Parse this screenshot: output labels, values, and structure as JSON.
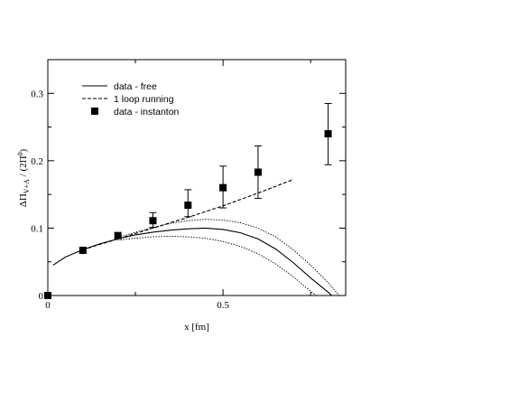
{
  "chart_data": {
    "type": "line",
    "xlabel": "x [fm]",
    "ylabel": {
      "main": "ΔΠ",
      "sub": "V+A",
      "tail": " / (2Π",
      "sup": "0",
      "end": ")"
    },
    "xlim": [
      0,
      0.85
    ],
    "ylim": [
      0,
      0.35
    ],
    "x_ticks": [
      {
        "value": 0,
        "label": "0"
      },
      {
        "value": 0.5,
        "label": "0.5"
      }
    ],
    "x_minor_ticks": [
      0.25,
      0.75
    ],
    "y_ticks": [
      {
        "value": 0,
        "label": "0"
      },
      {
        "value": 0.1,
        "label": "0.1"
      },
      {
        "value": 0.2,
        "label": "0.2"
      },
      {
        "value": 0.3,
        "label": "0.3"
      }
    ],
    "y_minor_ticks": [
      0.05,
      0.15,
      0.25
    ],
    "grid": false,
    "legend_position": "top-left",
    "legend": [
      {
        "label": "data - free",
        "style": "solid"
      },
      {
        "label": "1 loop running",
        "style": "dashed"
      },
      {
        "label": "data - instanton",
        "style": "marker"
      }
    ],
    "series": [
      {
        "name": "data - free",
        "style": "solid",
        "x": [
          0.015,
          0.05,
          0.1,
          0.15,
          0.2,
          0.25,
          0.3,
          0.35,
          0.4,
          0.45,
          0.5,
          0.55,
          0.6,
          0.65,
          0.7,
          0.75,
          0.8,
          0.82
        ],
        "y": [
          0.045,
          0.057,
          0.068,
          0.077,
          0.084,
          0.09,
          0.094,
          0.097,
          0.099,
          0.1,
          0.098,
          0.093,
          0.084,
          0.069,
          0.049,
          0.026,
          0.005,
          -0.005
        ]
      },
      {
        "name": "",
        "style": "dotted",
        "x": [
          0.2,
          0.25,
          0.3,
          0.35,
          0.4,
          0.45,
          0.5,
          0.55,
          0.6,
          0.65,
          0.7,
          0.75,
          0.8,
          0.84
        ],
        "y": [
          0.086,
          0.094,
          0.101,
          0.107,
          0.111,
          0.113,
          0.112,
          0.108,
          0.1,
          0.087,
          0.068,
          0.045,
          0.019,
          -0.005
        ]
      },
      {
        "name": "",
        "style": "dotted",
        "x": [
          0.2,
          0.25,
          0.3,
          0.35,
          0.4,
          0.45,
          0.5,
          0.55,
          0.6,
          0.65,
          0.7,
          0.75,
          0.78
        ],
        "y": [
          0.082,
          0.085,
          0.087,
          0.088,
          0.087,
          0.085,
          0.08,
          0.073,
          0.062,
          0.047,
          0.028,
          0.006,
          -0.005
        ]
      },
      {
        "name": "1 loop running",
        "style": "dashed",
        "x": [
          0.1,
          0.2,
          0.3,
          0.4,
          0.5,
          0.6,
          0.7
        ],
        "y": [
          0.068,
          0.084,
          0.1,
          0.116,
          0.133,
          0.152,
          0.172
        ]
      },
      {
        "name": "data - instanton",
        "style": "marker",
        "x": [
          0.0,
          0.1,
          0.2,
          0.3,
          0.4,
          0.5,
          0.6,
          0.8
        ],
        "y": [
          0.0,
          0.067,
          0.089,
          0.111,
          0.134,
          0.16,
          0.183,
          0.24
        ],
        "err_low": [
          0.0,
          0.0,
          0.0,
          0.01,
          0.017,
          0.03,
          0.039,
          0.046
        ],
        "err_high": [
          0.0,
          0.0,
          0.0,
          0.012,
          0.023,
          0.032,
          0.039,
          0.045
        ]
      }
    ]
  }
}
